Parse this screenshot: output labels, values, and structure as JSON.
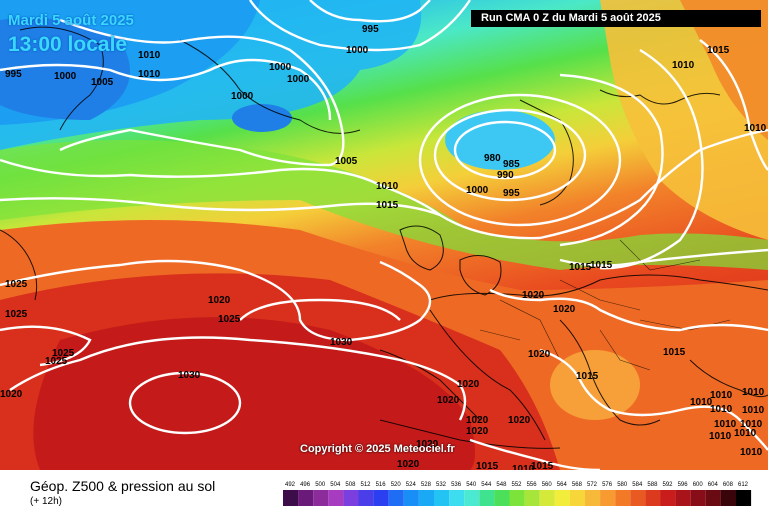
{
  "header": {
    "date": "Mardi 5 août 2025",
    "local_time": "13:00 locale",
    "run": "Run CMA 0 Z du Mardi 5 août 2025"
  },
  "copyright": "Copyright © 2025 Meteociel.fr",
  "footer": {
    "title": "Géop. Z500 & pression au sol",
    "subtitle": "(+ 12h)"
  },
  "legend": {
    "ticks": [
      "492",
      "496",
      "500",
      "504",
      "508",
      "512",
      "516",
      "520",
      "524",
      "528",
      "532",
      "536",
      "540",
      "544",
      "548",
      "552",
      "556",
      "560",
      "564",
      "568",
      "572",
      "576",
      "580",
      "584",
      "588",
      "592",
      "596",
      "600",
      "604",
      "608",
      "612"
    ],
    "colors": [
      "#3d0d4a",
      "#6a1a78",
      "#8b2c9a",
      "#a83cc0",
      "#7b3fe0",
      "#4a3ee8",
      "#2b3ff0",
      "#1f6cf5",
      "#1a8ef7",
      "#1aaaf5",
      "#23c4f3",
      "#3ddcef",
      "#4be8d2",
      "#3fe38f",
      "#4ce05a",
      "#7ce33a",
      "#a8e53a",
      "#d4e93a",
      "#f2ec3a",
      "#f7d63a",
      "#f7b93a",
      "#f79a2f",
      "#f27a26",
      "#e85a22",
      "#dc3a1f",
      "#c91c1c",
      "#a8141a",
      "#870e18",
      "#6a0a12",
      "#3a050a",
      "#000000"
    ]
  },
  "pressure_labels": [
    "995",
    "1000",
    "1005",
    "1010",
    "1015",
    "1020",
    "1025",
    "1030",
    "980",
    "985",
    "990"
  ],
  "contours": {
    "l995": "995",
    "l1000": "1000",
    "l1005": "1005",
    "l1010": "1010",
    "l1015": "1015",
    "l1020": "1020",
    "l1025": "1025",
    "l1030": "1030",
    "l980": "980",
    "l985": "985",
    "l990": "990"
  }
}
